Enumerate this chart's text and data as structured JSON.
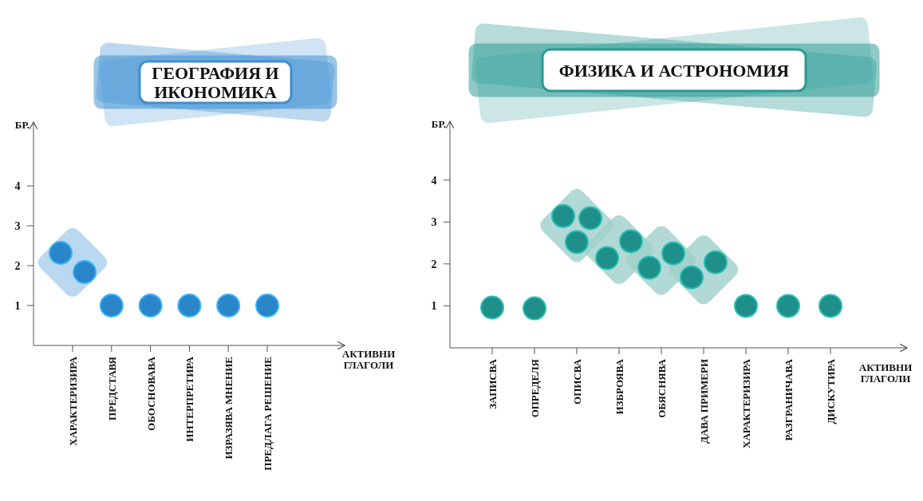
{
  "chart_data": [
    {
      "type": "scatter",
      "title": "ГЕОГРАФИЯ И ИКОНОМИКА",
      "xlabel": "АКТИВНИ ГЛАГОЛИ",
      "ylabel": "БР.",
      "marker": "circle",
      "ylim": [
        0,
        5.6
      ],
      "yticks": [
        1,
        2,
        3,
        4
      ],
      "categories": [
        "ХАРАКТЕРИЗИРА",
        "ПРЕДСТАВЯ",
        "ОБОСНОВАВА",
        "ИНТЕРПРЕТИРА",
        "ИЗРАЗЯВА МНЕНИЕ",
        "ПРЕДЛАГА РЕШЕНИЕ"
      ],
      "series": [
        {
          "color": "#2a86c8",
          "x": [
            "ХАРАКТЕРИЗИРА",
            "ХАРАКТЕРИЗИРА",
            "ПРЕДСТАВЯ",
            "ОБОСНОВАВА",
            "ИНТЕРПРЕТИРА",
            "ИЗРАЗЯВА МНЕНИЕ",
            "ПРЕДЛАГА РЕШЕНИЕ"
          ],
          "values": [
            2.32,
            1.84,
            1,
            1,
            1,
            1,
            1
          ]
        }
      ]
    },
    {
      "type": "scatter",
      "title": "ФИЗИКА И АСТРОНОМИЯ",
      "xlabel": "АКТИВНИ ГЛАГОЛИ",
      "ylabel": "БР.",
      "marker": "circle",
      "ylim": [
        0,
        5.4
      ],
      "yticks": [
        1,
        2,
        3,
        4
      ],
      "categories": [
        "ЗАПИСВА",
        "ОПРЕДЕЛЯ",
        "ОПИСВА",
        "ИЗБРОЯВА",
        "ОБЯСНЯВА",
        "ДАВА ПРИМЕРИ",
        "ХАРАКТЕРИЗИРА",
        "РАЗГРАНИЧАВА",
        "ДИСКУТИРА"
      ],
      "series": [
        {
          "color": "#1f8f89",
          "x": [
            "ЗАПИСВА",
            "ОПРЕДЕЛЯ",
            "ОПИСВА",
            "ОПИСВА",
            "ОПИСВА",
            "ИЗБРОЯВА",
            "ИЗБРОЯВА",
            "ОБЯСНЯВА",
            "ОБЯСНЯВА",
            "ДАВА ПРИМЕРИ",
            "ДАВА ПРИМЕРИ",
            "ХАРАКТЕРИЗИРА",
            "РАЗГРАНИЧАВА",
            "ДИСКУТИРА"
          ],
          "values": [
            0.96,
            0.94,
            3.14,
            3.09,
            2.52,
            2.14,
            2.54,
            1.91,
            2.25,
            1.68,
            2.04,
            1,
            1,
            1
          ]
        }
      ]
    }
  ]
}
